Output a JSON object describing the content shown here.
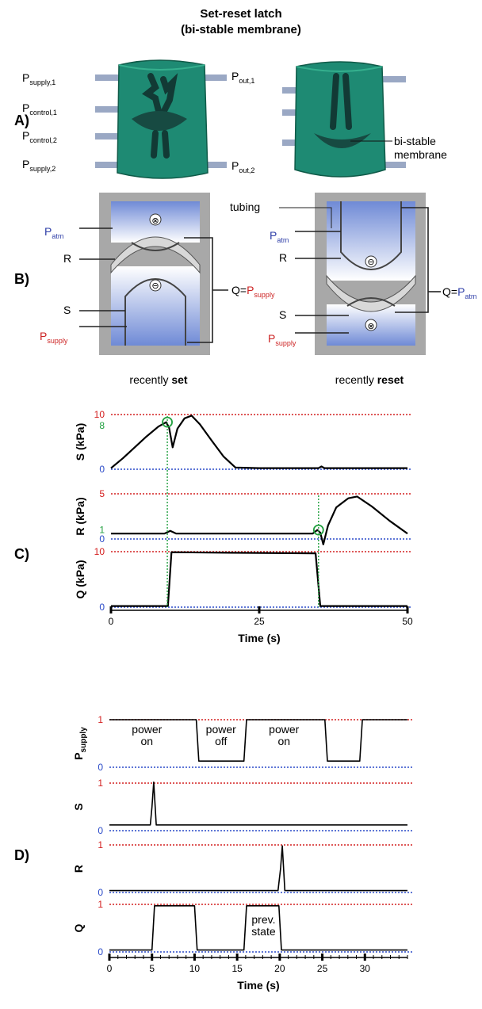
{
  "header": {
    "title_line1": "Set-reset latch",
    "title_line2": "(bi-stable membrane)"
  },
  "panels": {
    "a": "A)",
    "b": "B)",
    "c": "C)",
    "d": "D)"
  },
  "panel_a": {
    "labels": [
      {
        "main": "P",
        "sub": "supply,1"
      },
      {
        "main": "P",
        "sub": "control,1"
      },
      {
        "main": "P",
        "sub": "control,2"
      },
      {
        "main": "P",
        "sub": "supply,2"
      },
      {
        "main": "P",
        "sub": "out,1"
      },
      {
        "main": "P",
        "sub": "out,2"
      }
    ],
    "membrane_line1": "bi-stable",
    "membrane_line2": "membrane",
    "body_color": "#1e8a73"
  },
  "panel_b": {
    "tubing": "tubing",
    "patm": {
      "main": "P",
      "sub": "atm"
    },
    "psupply": {
      "main": "P",
      "sub": "supply"
    },
    "r": "R",
    "s": "S",
    "left_q": {
      "prefix": "Q=",
      "main": "P",
      "sub": "supply"
    },
    "right_q": {
      "prefix": "Q=",
      "main": "P",
      "sub": "atm"
    },
    "left_caption": {
      "normal": "recently ",
      "bold": "set"
    },
    "right_caption": {
      "normal": "recently ",
      "bold": "reset"
    },
    "plus_symbol": "⊗",
    "minus_symbol": "⊖",
    "blue_color": "#2f3fa8",
    "red_color": "#cc2222"
  },
  "chart_data": [
    {
      "type": "line",
      "panel": "C",
      "xlabel": "Time (s)",
      "xlim": [
        0,
        50
      ],
      "xticks": [
        0,
        25,
        50
      ],
      "subplots": [
        {
          "ylabel": "S (kPa)",
          "ylim": [
            0,
            10
          ],
          "yticks": [
            0,
            8,
            10
          ],
          "ref_high": 10,
          "ref_low": 0,
          "x": [
            0,
            2,
            4,
            6,
            8,
            9.3,
            9.8,
            10.4,
            11.2,
            12.4,
            13.6,
            15,
            17,
            19,
            21,
            25,
            30,
            35,
            35.5,
            36,
            40,
            45,
            50
          ],
          "y": [
            0.2,
            2,
            4,
            6,
            7.8,
            8.6,
            7.6,
            4.0,
            7.4,
            9.3,
            9.8,
            8.2,
            5.2,
            2.3,
            0.3,
            0.2,
            0.2,
            0.2,
            0.5,
            0.2,
            0.2,
            0.2,
            0.2
          ]
        },
        {
          "ylabel": "R (kPa)",
          "ylim": [
            0,
            5
          ],
          "yticks": [
            0,
            1,
            5
          ],
          "ref_high": 5,
          "ref_low": 0,
          "x": [
            0,
            5,
            9,
            10,
            11,
            20,
            30,
            34,
            34.8,
            35.3,
            35.8,
            36.6,
            38,
            40,
            41.5,
            44,
            47,
            50
          ],
          "y": [
            0.6,
            0.6,
            0.6,
            0.9,
            0.6,
            0.6,
            0.6,
            0.6,
            1.0,
            0.7,
            -0.6,
            1.5,
            3.5,
            4.5,
            4.7,
            3.6,
            2.0,
            0.6
          ]
        },
        {
          "ylabel": "Q (kPa)",
          "ylim": [
            0,
            10
          ],
          "yticks": [
            0,
            10
          ],
          "ref_high": 10,
          "ref_low": 0,
          "x": [
            0,
            9.6,
            10.2,
            20,
            34.5,
            35.3,
            40,
            50
          ],
          "y": [
            0.2,
            0.2,
            9.9,
            9.8,
            9.7,
            0.2,
            0.2,
            0.2
          ]
        }
      ],
      "markers": [
        {
          "x": 9.5,
          "subplot": 0,
          "y": 8.6
        },
        {
          "x": 35,
          "subplot": 1,
          "y": 1.0
        }
      ]
    },
    {
      "type": "line",
      "panel": "D",
      "xlabel": "Time (s)",
      "xlim": [
        0,
        35
      ],
      "xticks": [
        0,
        5,
        10,
        15,
        20,
        25,
        30
      ],
      "subplots": [
        {
          "ylabel": "P",
          "ylabel_sub": "supply",
          "ylim": [
            0,
            1
          ],
          "yticks": [
            0,
            1
          ],
          "ref_high": 1,
          "ref_low": 0,
          "x": [
            0,
            10.2,
            10.5,
            15.8,
            16.1,
            25.3,
            25.6,
            29.4,
            29.7,
            35
          ],
          "y": [
            1,
            1,
            0.13,
            0.13,
            1,
            1,
            0.13,
            0.13,
            1,
            1
          ]
        },
        {
          "ylabel": "S",
          "ylim": [
            0,
            1
          ],
          "yticks": [
            0,
            1
          ],
          "ref_high": 1,
          "ref_low": 0,
          "x": [
            0,
            4.8,
            5.0,
            5.2,
            5.5,
            35
          ],
          "y": [
            0.12,
            0.12,
            0.5,
            1.02,
            0.12,
            0.12
          ]
        },
        {
          "ylabel": "R",
          "ylim": [
            0,
            1
          ],
          "yticks": [
            0,
            1
          ],
          "ref_high": 1,
          "ref_low": 0,
          "x": [
            0,
            19.8,
            20.1,
            20.3,
            20.6,
            35
          ],
          "y": [
            0.04,
            0.04,
            0.5,
            0.98,
            0.04,
            0.04
          ]
        },
        {
          "ylabel": "Q",
          "ylim": [
            0,
            1
          ],
          "yticks": [
            0,
            1
          ],
          "ref_high": 1,
          "ref_low": 0,
          "x": [
            0,
            5.0,
            5.3,
            10.0,
            10.3,
            15.8,
            16.1,
            19.9,
            20.2,
            35
          ],
          "y": [
            0.04,
            0.04,
            0.97,
            0.97,
            0.04,
            0.04,
            0.97,
            0.97,
            0.04,
            0.04
          ]
        }
      ],
      "annotations": [
        {
          "subplot": 0,
          "x": 4.4,
          "y": 0.72,
          "lines": [
            "power",
            "on"
          ]
        },
        {
          "subplot": 0,
          "x": 13.1,
          "y": 0.72,
          "lines": [
            "power",
            "off"
          ]
        },
        {
          "subplot": 0,
          "x": 20.5,
          "y": 0.72,
          "lines": [
            "power",
            "on"
          ]
        },
        {
          "subplot": 3,
          "x": 18.1,
          "y": 0.6,
          "lines": [
            "prev.",
            "state"
          ]
        }
      ]
    }
  ],
  "colors": {
    "ref_high": "#d42020",
    "ref_low": "#2a4ac8",
    "marker": "#22a040",
    "trace": "#000000"
  }
}
